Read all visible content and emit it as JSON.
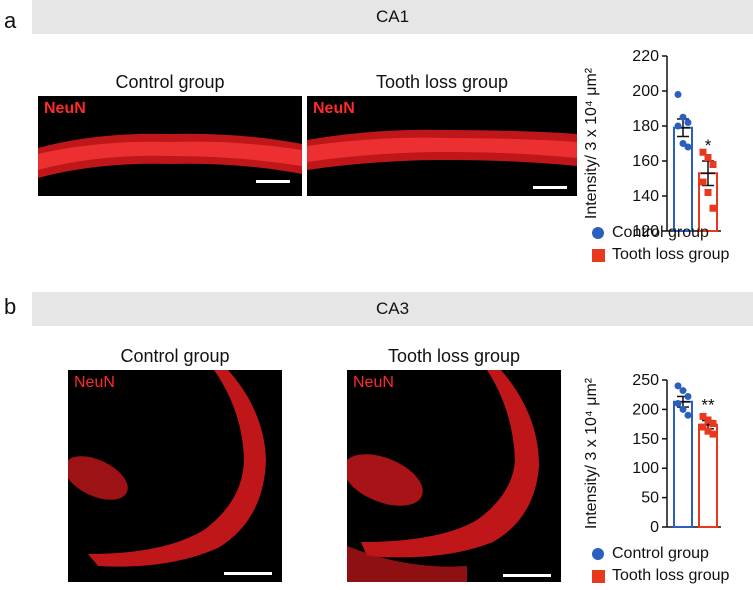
{
  "panels": [
    {
      "letter": "a",
      "region": "CA1",
      "image_titles": [
        "Control group",
        "Tooth loss group"
      ],
      "stain_label": "NeuN"
    },
    {
      "letter": "b",
      "region": "CA3",
      "image_titles": [
        "Control group",
        "Tooth loss group"
      ],
      "stain_label": "NeuN"
    }
  ],
  "legend": [
    {
      "label": "Control group",
      "color": "#2b5fbd",
      "marker": "circle"
    },
    {
      "label": "Tooth loss group",
      "color": "#e8391f",
      "marker": "square"
    }
  ],
  "chart_data": [
    {
      "type": "bar",
      "categories": [
        "Control group",
        "Tooth loss group"
      ],
      "values": [
        179,
        153
      ],
      "error": [
        5,
        7
      ],
      "points": [
        [
          198,
          185,
          182,
          180,
          170,
          168
        ],
        [
          165,
          162,
          158,
          148,
          142,
          133
        ]
      ],
      "colors": [
        "#2b5fbd",
        "#e8391f"
      ],
      "ylabel": "Intensity/ 3 x 10⁴ μm²",
      "ylim": [
        120,
        220
      ],
      "yticks": [
        120,
        140,
        160,
        180,
        200,
        220
      ],
      "significance": "*",
      "grid": false
    },
    {
      "type": "bar",
      "categories": [
        "Control group",
        "Tooth loss group"
      ],
      "values": [
        213,
        174
      ],
      "error": [
        9,
        7
      ],
      "points": [
        [
          240,
          232,
          222,
          210,
          200,
          190
        ],
        [
          188,
          182,
          176,
          170,
          163,
          158
        ]
      ],
      "colors": [
        "#2b5fbd",
        "#e8391f"
      ],
      "ylabel": "Intensity/ 3 x 10⁴ μm²",
      "ylim": [
        0,
        250
      ],
      "yticks": [
        0,
        50,
        100,
        150,
        200,
        250
      ],
      "significance": "**",
      "grid": false
    }
  ]
}
